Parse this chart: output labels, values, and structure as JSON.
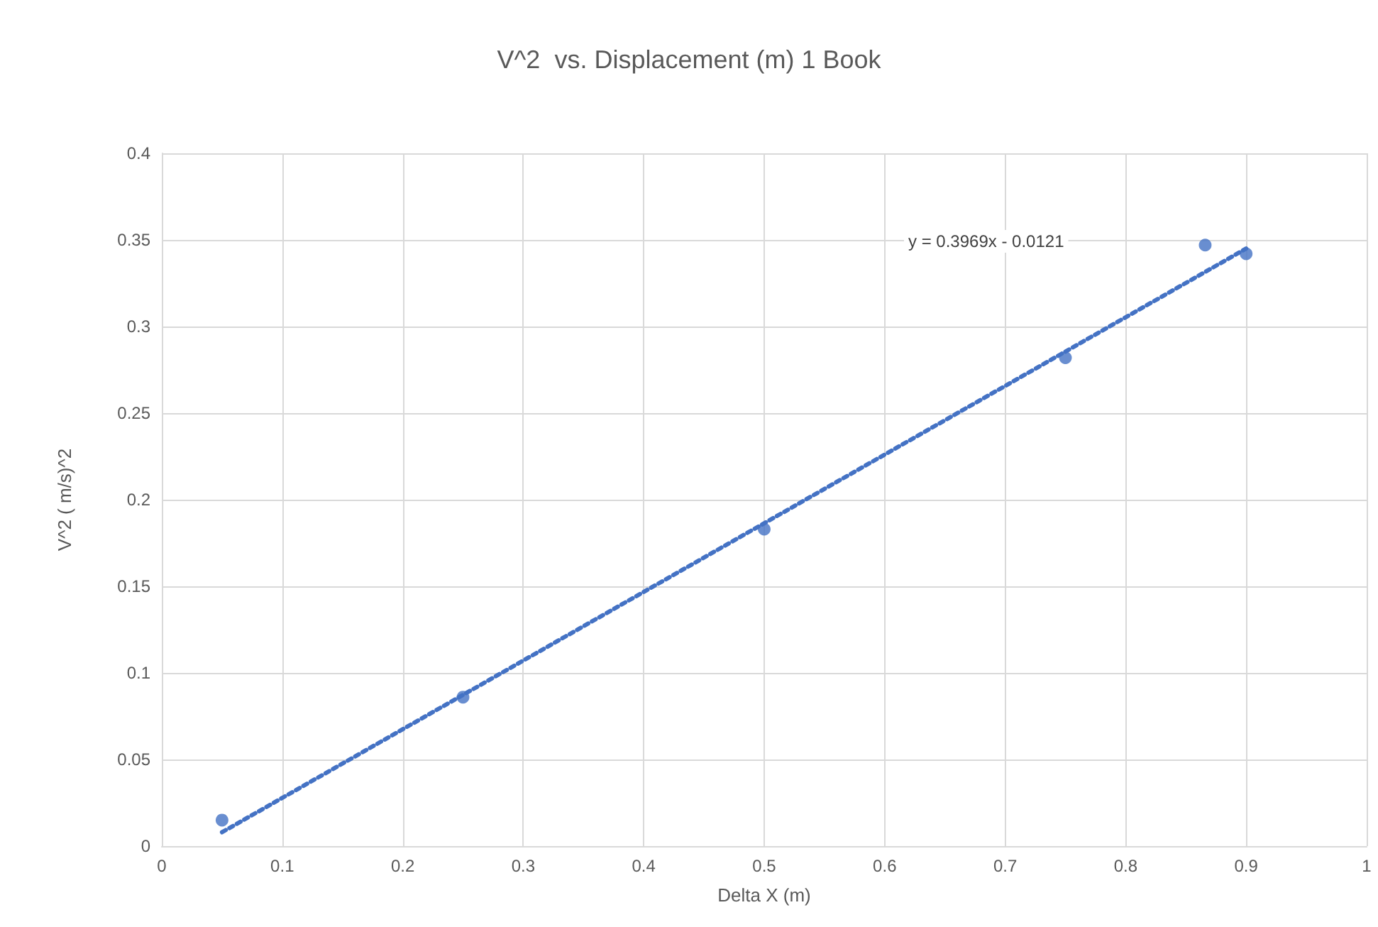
{
  "chart_data": {
    "type": "scatter",
    "title": "V^2  vs. Displacement (m) 1 Book",
    "xlabel": "Delta X (m)",
    "ylabel": "V^2 ( m/s)^2",
    "x": [
      0.05,
      0.25,
      0.5,
      0.75,
      0.866,
      0.9
    ],
    "series": [
      {
        "color": "#4472c4",
        "values": [
          0.015,
          0.086,
          0.183,
          0.282,
          0.347,
          0.342
        ],
        "marker": "circle"
      },
      {
        "type": "line",
        "color": "#4472c4",
        "x": [
          0.05,
          0.9
        ],
        "values": [
          0.008,
          0.345
        ],
        "line_style": "dotted",
        "marker": "none"
      }
    ],
    "annotations": [
      "y = 0.3969x - 0.0121"
    ],
    "xlim": [
      0,
      1
    ],
    "xticks": [
      0,
      0.1,
      0.2,
      0.3,
      0.4,
      0.5,
      0.6,
      0.7,
      0.8,
      0.9,
      1
    ],
    "ylim": [
      0,
      0.4
    ],
    "yticks": [
      0,
      0.05,
      0.1,
      0.15,
      0.2,
      0.25,
      0.3,
      0.35,
      0.4
    ],
    "grid": true
  }
}
